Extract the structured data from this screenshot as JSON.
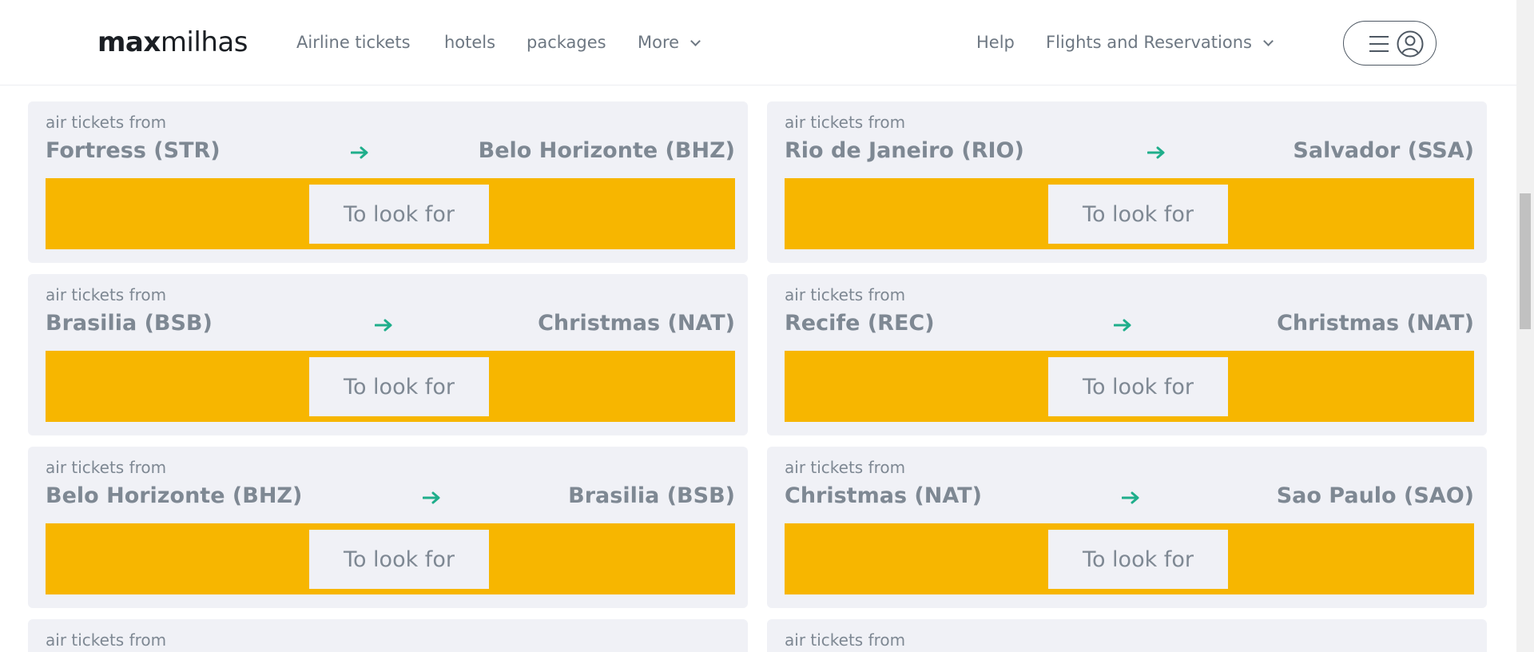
{
  "header": {
    "logo_max": "max",
    "logo_milhas": "milhas",
    "nav": {
      "airline": "Airline tickets",
      "hotels": "hotels",
      "packages": "packages",
      "more": "More"
    },
    "help": "Help",
    "flights": "Flights and Reservations"
  },
  "card_label": "air tickets from",
  "search_label": "To look for",
  "colors": {
    "accent": "#f7b600",
    "arrow": "#1fae8b",
    "card_bg": "#f0f1f6"
  },
  "routes": [
    {
      "from": "Fortress (STR)",
      "to": "Belo Horizonte (BHZ)"
    },
    {
      "from": "Rio de Janeiro (RIO)",
      "to": "Salvador (SSA)"
    },
    {
      "from": "Brasilia (BSB)",
      "to": "Christmas (NAT)"
    },
    {
      "from": "Recife (REC)",
      "to": "Christmas (NAT)"
    },
    {
      "from": "Belo Horizonte (BHZ)",
      "to": "Brasilia (BSB)"
    },
    {
      "from": "Christmas (NAT)",
      "to": "Sao Paulo (SAO)"
    }
  ]
}
